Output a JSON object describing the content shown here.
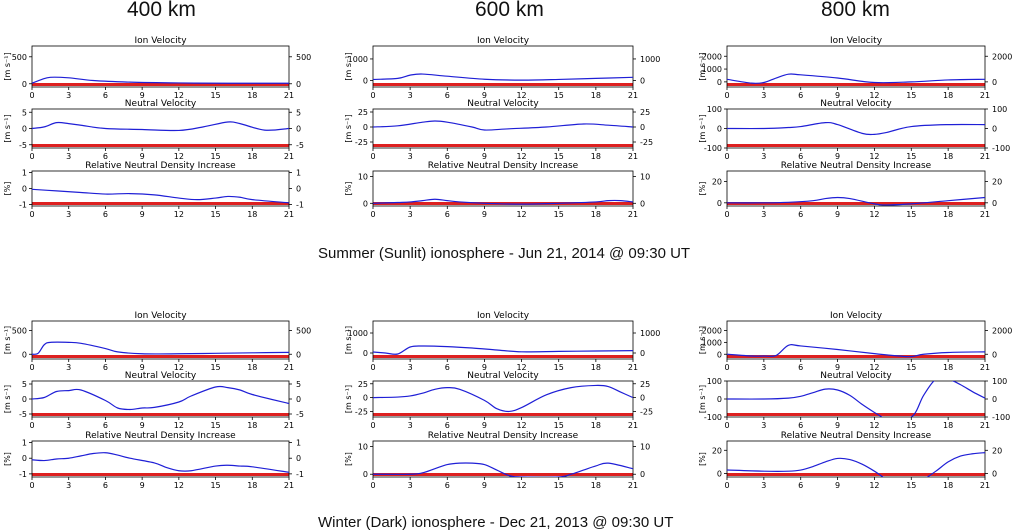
{
  "columns": [
    {
      "label": "400 km"
    },
    {
      "label": "600 km"
    },
    {
      "label": "800 km"
    }
  ],
  "captions": {
    "summer": "Summer (Sunlit) ionosphere - Jun 21, 2014 @ 09:30 UT",
    "winter": "Winter (Dark) ionosphere - Dec 21, 2013 @ 09:30 UT"
  },
  "colors": {
    "line": "#1f1fd6",
    "band": "#dd2020",
    "axis": "#000000"
  },
  "chart_data": [
    {
      "type": "line",
      "title": "Ion Velocity",
      "ylabel": "[m s⁻¹]",
      "xlim": [
        0,
        21
      ],
      "xticks": [
        0,
        3,
        6,
        9,
        12,
        15,
        18,
        21
      ],
      "ylim": [
        -60,
        700
      ],
      "yticks": [
        0,
        500
      ],
      "y2ticks": [
        0,
        500
      ],
      "x": [
        0,
        0.8,
        1.5,
        3,
        5,
        8,
        12,
        16,
        21
      ],
      "y": [
        10,
        80,
        120,
        110,
        60,
        30,
        15,
        10,
        10
      ]
    },
    {
      "type": "line",
      "title": "Neutral Velocity",
      "ylabel": "[m s⁻¹]",
      "xlim": [
        0,
        21
      ],
      "xticks": [
        0,
        3,
        6,
        9,
        12,
        15,
        18,
        21
      ],
      "ylim": [
        -6,
        6
      ],
      "yticks": [
        -5,
        0,
        5
      ],
      "y2ticks": [
        -5,
        0,
        5
      ],
      "x": [
        0,
        1,
        2,
        3,
        4,
        6,
        9,
        12,
        14,
        16,
        17,
        19,
        21
      ],
      "y": [
        0,
        0.5,
        1.8,
        1.5,
        1,
        0,
        -0.3,
        -0.6,
        0.5,
        2,
        1.5,
        -0.5,
        0
      ]
    },
    {
      "type": "line",
      "title": "Relative Neutral Density Increase",
      "ylabel": "[%]",
      "xlim": [
        0,
        21
      ],
      "xticks": [
        0,
        3,
        6,
        9,
        12,
        15,
        18,
        21
      ],
      "ylim": [
        -1.1,
        1.1
      ],
      "yticks": [
        -1,
        0,
        1
      ],
      "y2ticks": [
        -1,
        0,
        1
      ],
      "x": [
        0,
        2,
        4,
        6,
        8,
        10,
        12,
        13.5,
        15,
        16,
        17,
        18,
        21
      ],
      "y": [
        -0.05,
        -0.15,
        -0.25,
        -0.35,
        -0.32,
        -0.4,
        -0.6,
        -0.7,
        -0.6,
        -0.5,
        -0.55,
        -0.7,
        -0.9
      ]
    },
    {
      "type": "line",
      "title": "Ion Velocity",
      "ylabel": "[m s⁻¹]",
      "xlim": [
        0,
        21
      ],
      "xticks": [
        0,
        3,
        6,
        9,
        12,
        15,
        18,
        21
      ],
      "ylim": [
        -300,
        1600
      ],
      "yticks": [
        0,
        1000
      ],
      "y2ticks": [
        0,
        1000
      ],
      "x": [
        0,
        2,
        3,
        4,
        6,
        9,
        12,
        15,
        18,
        21
      ],
      "y": [
        50,
        100,
        250,
        300,
        200,
        60,
        20,
        50,
        100,
        150
      ]
    },
    {
      "type": "line",
      "title": "Neutral Velocity",
      "ylabel": "[m s⁻¹]",
      "xlim": [
        0,
        21
      ],
      "xticks": [
        0,
        3,
        6,
        9,
        12,
        15,
        18,
        21
      ],
      "ylim": [
        -35,
        30
      ],
      "yticks": [
        -25,
        0,
        25
      ],
      "y2ticks": [
        -25,
        0,
        25
      ],
      "x": [
        0,
        2,
        4,
        5,
        6,
        8,
        9,
        11,
        14,
        17,
        19,
        21
      ],
      "y": [
        0,
        2,
        8,
        10,
        8,
        0,
        -5,
        -3,
        0,
        5,
        3,
        0
      ]
    },
    {
      "type": "line",
      "title": "Relative Neutral Density Increase",
      "ylabel": "[%]",
      "xlim": [
        0,
        21
      ],
      "xticks": [
        0,
        3,
        6,
        9,
        12,
        15,
        18,
        21
      ],
      "ylim": [
        -1,
        12
      ],
      "yticks": [
        0,
        10
      ],
      "y2ticks": [
        0,
        10
      ],
      "x": [
        0,
        2,
        3,
        4,
        5,
        6,
        7,
        9,
        12,
        15,
        18,
        19,
        20,
        21
      ],
      "y": [
        0,
        0.3,
        0.5,
        1,
        1.5,
        1,
        0.5,
        0,
        -0.3,
        0,
        0.5,
        1,
        1,
        0.5
      ]
    },
    {
      "type": "line",
      "title": "Ion Velocity",
      "ylabel": "[m s⁻¹]",
      "xlim": [
        0,
        21
      ],
      "xticks": [
        0,
        3,
        6,
        9,
        12,
        15,
        18,
        21
      ],
      "ylim": [
        -400,
        2800
      ],
      "yticks": [
        0,
        1000,
        2000
      ],
      "y2ticks": [
        0,
        2000
      ],
      "x": [
        0,
        2,
        3,
        4,
        5,
        6,
        9,
        12,
        15,
        18,
        21
      ],
      "y": [
        200,
        -100,
        -50,
        300,
        600,
        550,
        300,
        -50,
        0,
        150,
        200
      ]
    },
    {
      "type": "line",
      "title": "Neutral Velocity",
      "ylabel": "[m s⁻¹]",
      "xlim": [
        0,
        21
      ],
      "xticks": [
        0,
        3,
        6,
        9,
        12,
        15,
        18,
        21
      ],
      "ylim": [
        -100,
        100
      ],
      "yticks": [
        -100,
        0,
        100
      ],
      "y2ticks": [
        -100,
        0,
        100
      ],
      "x": [
        0,
        3,
        5,
        6,
        8,
        9,
        11,
        12,
        13,
        15,
        18,
        21
      ],
      "y": [
        0,
        0,
        5,
        10,
        30,
        20,
        -25,
        -30,
        -20,
        10,
        20,
        20
      ]
    },
    {
      "type": "line",
      "title": "Relative Neutral Density Increase",
      "ylabel": "[%]",
      "xlim": [
        0,
        21
      ],
      "xticks": [
        0,
        3,
        6,
        9,
        12,
        15,
        18,
        21
      ],
      "ylim": [
        -3,
        30
      ],
      "yticks": [
        0,
        20
      ],
      "y2ticks": [
        0,
        20
      ],
      "x": [
        0,
        3,
        5,
        7,
        8,
        9,
        10,
        12,
        13,
        15,
        18,
        21
      ],
      "y": [
        0,
        0,
        0.5,
        2,
        4,
        5,
        4,
        -1,
        -2,
        -1,
        2,
        5
      ]
    },
    {
      "type": "line",
      "title": "Ion Velocity",
      "ylabel": "[m s⁻¹]",
      "xlim": [
        0,
        21
      ],
      "xticks": [
        0,
        3,
        6,
        9,
        12,
        15,
        18,
        21
      ],
      "ylim": [
        -100,
        700
      ],
      "yticks": [
        0,
        500
      ],
      "y2ticks": [
        0,
        500
      ],
      "x": [
        0,
        0.5,
        1,
        1.5,
        3,
        4,
        6,
        7,
        9,
        12,
        15,
        18,
        21
      ],
      "y": [
        0,
        20,
        200,
        250,
        250,
        230,
        120,
        50,
        10,
        10,
        20,
        30,
        40
      ]
    },
    {
      "type": "line",
      "title": "Neutral Velocity",
      "ylabel": "[m s⁻¹]",
      "xlim": [
        0,
        21
      ],
      "xticks": [
        0,
        3,
        6,
        9,
        12,
        15,
        18,
        21
      ],
      "ylim": [
        -6,
        6
      ],
      "yticks": [
        -5,
        0,
        5
      ],
      "y2ticks": [
        -5,
        0,
        5
      ],
      "x": [
        0,
        1,
        2,
        3,
        4,
        6,
        7,
        8,
        9,
        10,
        12,
        13,
        15,
        16,
        17,
        18,
        21
      ],
      "y": [
        0,
        0.5,
        2.5,
        2.8,
        3,
        -0.5,
        -3,
        -3.5,
        -3,
        -2.8,
        -1,
        1,
        4,
        3.8,
        3,
        1.5,
        -1.5
      ]
    },
    {
      "type": "line",
      "title": "Relative Neutral Density Increase",
      "ylabel": "[%]",
      "xlim": [
        0,
        21
      ],
      "xticks": [
        0,
        3,
        6,
        9,
        12,
        15,
        18,
        21
      ],
      "ylim": [
        -1.2,
        1.1
      ],
      "yticks": [
        -1,
        0,
        1
      ],
      "y2ticks": [
        -1,
        0,
        1
      ],
      "x": [
        0,
        1,
        2,
        3,
        4,
        5,
        6,
        7,
        8,
        10,
        11,
        12,
        13,
        15,
        16,
        17,
        18,
        21
      ],
      "y": [
        -0.1,
        -0.15,
        -0.05,
        0,
        0.15,
        0.3,
        0.35,
        0.2,
        0,
        -0.3,
        -0.6,
        -0.8,
        -0.8,
        -0.5,
        -0.45,
        -0.5,
        -0.55,
        -0.9
      ]
    },
    {
      "type": "line",
      "title": "Ion Velocity",
      "ylabel": "[m s⁻¹]",
      "xlim": [
        0,
        21
      ],
      "xticks": [
        0,
        3,
        6,
        9,
        12,
        15,
        18,
        21
      ],
      "ylim": [
        -300,
        1600
      ],
      "yticks": [
        0,
        1000
      ],
      "y2ticks": [
        0,
        1000
      ],
      "x": [
        0,
        1,
        2,
        3,
        4,
        6,
        8,
        10,
        12,
        15,
        18,
        21
      ],
      "y": [
        50,
        0,
        -50,
        300,
        350,
        320,
        250,
        150,
        60,
        80,
        100,
        120
      ]
    },
    {
      "type": "line",
      "title": "Neutral Velocity",
      "ylabel": "[m s⁻¹]",
      "xlim": [
        0,
        21
      ],
      "xticks": [
        0,
        3,
        6,
        9,
        12,
        15,
        18,
        21
      ],
      "ylim": [
        -35,
        30
      ],
      "yticks": [
        -25,
        0,
        25
      ],
      "y2ticks": [
        -25,
        0,
        25
      ],
      "x": [
        0,
        2,
        3,
        4,
        5,
        6,
        7,
        9,
        10,
        11,
        12,
        14,
        16,
        18,
        19,
        20,
        21
      ],
      "y": [
        0,
        1,
        3,
        8,
        15,
        18,
        15,
        -5,
        -20,
        -25,
        -18,
        5,
        18,
        22,
        20,
        10,
        0
      ]
    },
    {
      "type": "line",
      "title": "Relative Neutral Density Increase",
      "ylabel": "[%]",
      "xlim": [
        0,
        21
      ],
      "xticks": [
        0,
        3,
        6,
        9,
        12,
        15,
        18,
        21
      ],
      "ylim": [
        -1,
        12
      ],
      "yticks": [
        0,
        10
      ],
      "y2ticks": [
        0,
        10
      ],
      "x": [
        0,
        3,
        4,
        5,
        6,
        7,
        8,
        9,
        10,
        11,
        12,
        15,
        16,
        17,
        18,
        19,
        21
      ],
      "y": [
        0,
        0,
        0.5,
        2,
        3.5,
        4,
        4,
        3.5,
        1.5,
        -0.5,
        -1,
        -1,
        0,
        1.5,
        3,
        4,
        2
      ]
    },
    {
      "type": "line",
      "title": "Ion Velocity",
      "ylabel": "[m s⁻¹]",
      "xlim": [
        0,
        21
      ],
      "xticks": [
        0,
        3,
        6,
        9,
        12,
        15,
        18,
        21
      ],
      "ylim": [
        -400,
        2800
      ],
      "yticks": [
        0,
        1000,
        2000
      ],
      "y2ticks": [
        0,
        2000
      ],
      "x": [
        0,
        2,
        3,
        4,
        5,
        6,
        9,
        12,
        14,
        15,
        16,
        18,
        21
      ],
      "y": [
        0,
        -150,
        -150,
        -100,
        750,
        700,
        400,
        50,
        -150,
        -200,
        0,
        150,
        200
      ]
    },
    {
      "type": "line",
      "title": "Neutral Velocity",
      "ylabel": "[m s⁻¹]",
      "xlim": [
        0,
        21
      ],
      "xticks": [
        0,
        3,
        6,
        9,
        12,
        15,
        18,
        21
      ],
      "ylim": [
        -100,
        100
      ],
      "yticks": [
        -100,
        0,
        100
      ],
      "y2ticks": [
        -100,
        0,
        100
      ],
      "x": [
        0,
        3,
        5,
        6,
        7,
        8,
        9,
        10,
        11,
        12,
        12.5,
        13,
        15,
        16,
        17,
        18,
        19,
        20,
        21
      ],
      "y": [
        0,
        0,
        5,
        15,
        35,
        55,
        50,
        20,
        -30,
        -75,
        -95,
        -110,
        -100,
        20,
        110,
        110,
        80,
        40,
        5
      ]
    },
    {
      "type": "line",
      "title": "Relative Neutral Density Increase",
      "ylabel": "[%]",
      "xlim": [
        0,
        21
      ],
      "xticks": [
        0,
        3,
        6,
        9,
        12,
        15,
        18,
        21
      ],
      "ylim": [
        -3,
        28
      ],
      "yticks": [
        0,
        20
      ],
      "y2ticks": [
        0,
        20
      ],
      "x": [
        0,
        3,
        5,
        6,
        7,
        8,
        9,
        10,
        11,
        12,
        13,
        14,
        15,
        16,
        17,
        18,
        19,
        20,
        21
      ],
      "y": [
        3,
        2,
        2,
        3,
        6,
        10,
        13,
        12,
        8,
        2,
        -5,
        -10,
        -10,
        -5,
        2,
        10,
        15,
        17,
        18
      ]
    }
  ]
}
